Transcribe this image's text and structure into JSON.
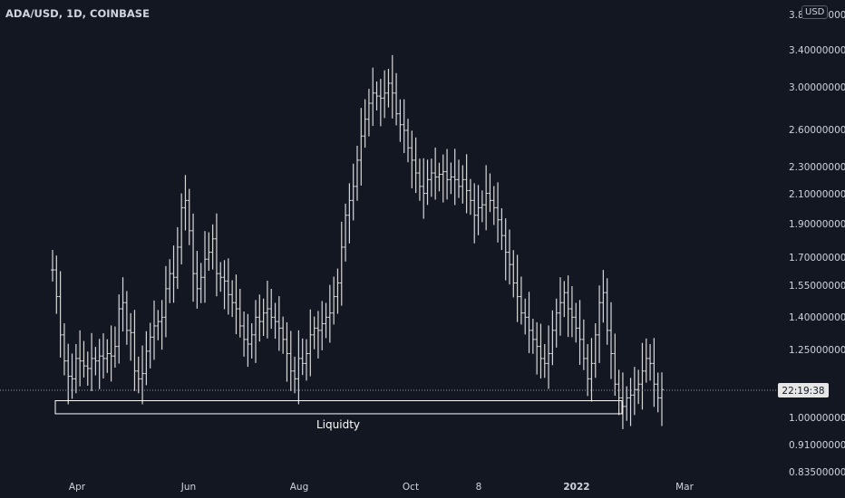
{
  "header": {
    "title": "ADA/USD, 1D, COINBASE",
    "currency": "USD"
  },
  "price_tag": "22:19:38",
  "colors": {
    "background": "#131722",
    "bar": "#d8d8d8",
    "text": "#d1d4dc",
    "box": "#ffffff"
  },
  "chart_data": {
    "type": "ohlc-bar",
    "x_tick_labels": [
      "Apr",
      "Jun",
      "Aug",
      "Oct",
      "8",
      "2022",
      "Mar"
    ],
    "y_tick_labels": [
      "3.80000000",
      "3.40000000",
      "3.00000000",
      "2.60000000",
      "2.30000000",
      "2.10000000",
      "1.90000000",
      "1.70000000",
      "1.55000000",
      "1.40000000",
      "1.25000000",
      "1.00000000",
      "0.91000000",
      "0.83500000"
    ],
    "y_scale": "log",
    "ylim": [
      0.82,
      3.85
    ],
    "annotation": {
      "label": "Liquidty",
      "price_low": 0.995,
      "price_high": 1.04
    },
    "series": [
      {
        "values": [
          1.62,
          1.48,
          1.3,
          1.19,
          1.13,
          1.12,
          1.2,
          1.19,
          1.17,
          1.16,
          1.2,
          1.19,
          1.21,
          1.2,
          1.22,
          1.21,
          1.25,
          1.42,
          1.45,
          1.32,
          1.31,
          1.15,
          1.12,
          1.14,
          1.23,
          1.29,
          1.34,
          1.36,
          1.38,
          1.52,
          1.6,
          1.58,
          1.75,
          2.0,
          2.05,
          1.85,
          1.6,
          1.52,
          1.58,
          1.68,
          1.72,
          1.8,
          1.6,
          1.58,
          1.56,
          1.49,
          1.45,
          1.42,
          1.34,
          1.28,
          1.26,
          1.3,
          1.38,
          1.36,
          1.4,
          1.42,
          1.38,
          1.36,
          1.33,
          1.28,
          1.22,
          1.15,
          1.12,
          1.2,
          1.18,
          1.22,
          1.3,
          1.33,
          1.32,
          1.35,
          1.38,
          1.4,
          1.48,
          1.55,
          1.75,
          1.95,
          2.05,
          2.15,
          2.35,
          2.55,
          2.7,
          2.85,
          2.95,
          2.92,
          2.9,
          2.95,
          3.05,
          2.95,
          2.75,
          2.65,
          2.6,
          2.45,
          2.35,
          2.25,
          2.15,
          2.1,
          2.2,
          2.25,
          2.22,
          2.24,
          2.26,
          2.2,
          2.22,
          2.2,
          2.15,
          2.2,
          2.12,
          2.05,
          1.95,
          2.0,
          2.02,
          2.1,
          2.05,
          2.0,
          1.92,
          1.82,
          1.72,
          1.65,
          1.55,
          1.48,
          1.4,
          1.38,
          1.32,
          1.28,
          1.25,
          1.2,
          1.18,
          1.22,
          1.32,
          1.4,
          1.45,
          1.5,
          1.42,
          1.38,
          1.33,
          1.28,
          1.2,
          1.12,
          1.18,
          1.3,
          1.45,
          1.5,
          1.32,
          1.22,
          1.1,
          1.05,
          1.02,
          1.05,
          1.06,
          1.08,
          1.1,
          1.15,
          1.2,
          1.18,
          1.1,
          1.05,
          1.08
        ]
      }
    ]
  }
}
